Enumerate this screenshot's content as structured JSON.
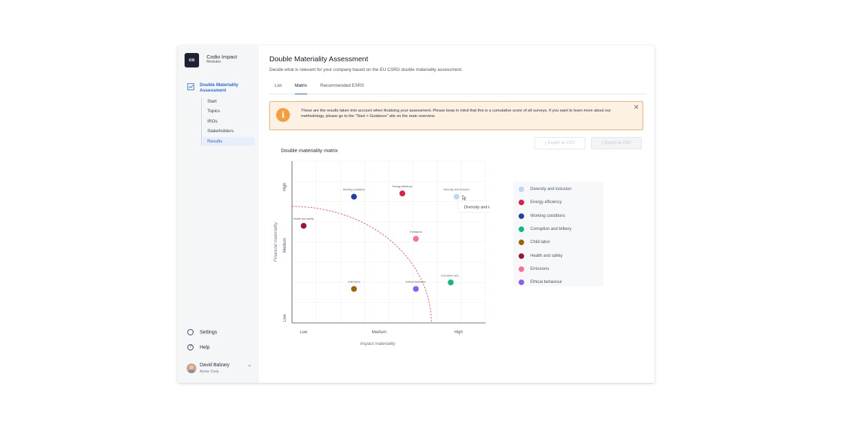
{
  "app": {
    "logo_text": "co",
    "name": "Codio Impact",
    "subtitle": "Modules"
  },
  "sidebar": {
    "section_label": "Double Materiality Assessment",
    "items": [
      {
        "label": "Start",
        "active": false
      },
      {
        "label": "Topics",
        "active": false
      },
      {
        "label": "IROs",
        "active": false
      },
      {
        "label": "Stakeholders",
        "active": false
      },
      {
        "label": "Results",
        "active": true
      }
    ],
    "settings_label": "Settings",
    "help_label": "Help",
    "user": {
      "name": "David Balzary",
      "org": "Acme Corp"
    }
  },
  "header": {
    "title": "Double Materiality Assessment",
    "description": "Decide what is relevant for your company based on the EU CSRD double materiality assessment."
  },
  "tabs": [
    {
      "label": "List",
      "active": false
    },
    {
      "label": "Matrix",
      "active": true
    },
    {
      "label": "Recommended ESRS",
      "active": false
    }
  ],
  "alert": {
    "text": "These are the results taken into account when finalizing your assessment. Please keep in mind that this is a cumulative score of all surveys. If you want to learn more about our methodology, please go to the \"Start > Guidance\" site on the main overview."
  },
  "buttons": {
    "export_csv": "Export as CSV",
    "export_pdf": "Export as PDF"
  },
  "chart_data": {
    "type": "scatter",
    "title": "Double materiality matrix",
    "xlabel": "Impact materiality",
    "ylabel": "Financial materiality",
    "x_ticks": [
      "Low",
      "Medium",
      "High"
    ],
    "y_ticks": [
      "Low",
      "Medium",
      "High"
    ],
    "xlim": [
      0,
      10
    ],
    "ylim": [
      0,
      10
    ],
    "grid": true,
    "threshold_radius": 7.2,
    "tooltip": {
      "text": "Diversity and inclusion",
      "point": "Diversity and inclusion"
    },
    "series": [
      {
        "name": "Diversity and inclusion",
        "point_label": "Diversity and inclusion",
        "x": 8.5,
        "y": 7.8,
        "color": "#bfd6f6"
      },
      {
        "name": "Energy efficiency",
        "point_label": "Energy efficiency",
        "x": 5.7,
        "y": 8.0,
        "color": "#e11d48"
      },
      {
        "name": "Working conditions",
        "point_label": "Working conditions",
        "x": 3.2,
        "y": 7.8,
        "color": "#1e40af"
      },
      {
        "name": "Corruption and bribery",
        "point_label": "Corruption and...",
        "x": 8.2,
        "y": 2.5,
        "color": "#10b981"
      },
      {
        "name": "Child labor",
        "point_label": "Child labor",
        "x": 3.2,
        "y": 2.1,
        "color": "#a16207"
      },
      {
        "name": "Health and safety",
        "point_label": "Health and safety",
        "x": 0.6,
        "y": 6.0,
        "color": "#9f1239"
      },
      {
        "name": "Emissions",
        "point_label": "Emissions",
        "x": 6.4,
        "y": 5.2,
        "color": "#f87194"
      },
      {
        "name": "Ethical behaviour",
        "point_label": "Ethical behaviour",
        "x": 6.4,
        "y": 2.1,
        "color": "#8b5cf6"
      }
    ]
  }
}
